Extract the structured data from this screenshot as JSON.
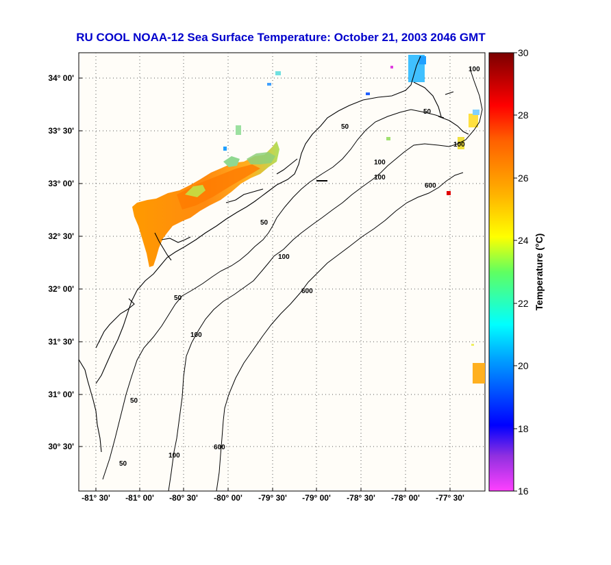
{
  "title": "RU COOL  NOAA-12  Sea Surface Temperature:  October 21, 2003 2046 GMT",
  "map": {
    "lon_ticks": [
      "-81° 30'",
      "-81° 00'",
      "-80° 30'",
      "-80° 00'",
      "-79° 30'",
      "-79° 00'",
      "-78° 30'",
      "-78° 00'",
      "-77° 30'"
    ],
    "lat_ticks": [
      "34° 00'",
      "33° 30'",
      "33° 00'",
      "32° 30'",
      "32° 00'",
      "31° 30'",
      "31° 00'",
      "30° 30'"
    ],
    "contour_labels": [
      "50",
      "100",
      "600"
    ],
    "grid": true
  },
  "colorbar": {
    "label": "Temperature (°C)",
    "ticks": [
      "30",
      "28",
      "26",
      "24",
      "22",
      "20",
      "18",
      "16"
    ],
    "min": 16,
    "max": 30
  }
}
